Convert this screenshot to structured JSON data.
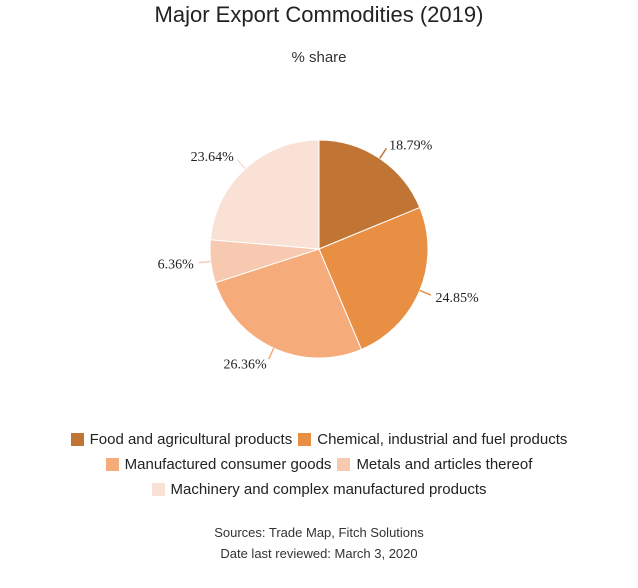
{
  "chart_data": {
    "type": "pie",
    "title": "Major Export Commodities (2019)",
    "subtitle": "% share",
    "slices": [
      {
        "label": "Food and agricultural products",
        "value": 18.79,
        "value_label": "18.79%",
        "color": "#c17535"
      },
      {
        "label": "Chemical, industrial and fuel products",
        "value": 24.85,
        "value_label": "24.85%",
        "color": "#e98f43"
      },
      {
        "label": "Manufactured consumer goods",
        "value": 26.36,
        "value_label": "26.36%",
        "color": "#f6ab7a"
      },
      {
        "label": "Metals and articles thereof",
        "value": 6.36,
        "value_label": "6.36%",
        "color": "#f8c9b1"
      },
      {
        "label": "Machinery and complex manufactured products",
        "value": 23.64,
        "value_label": "23.64%",
        "color": "#fae1d6"
      }
    ],
    "legend_position": "bottom"
  },
  "footer": {
    "sources": "Sources: Trade Map, Fitch Solutions",
    "reviewed": "Date last reviewed: March 3, 2020"
  }
}
